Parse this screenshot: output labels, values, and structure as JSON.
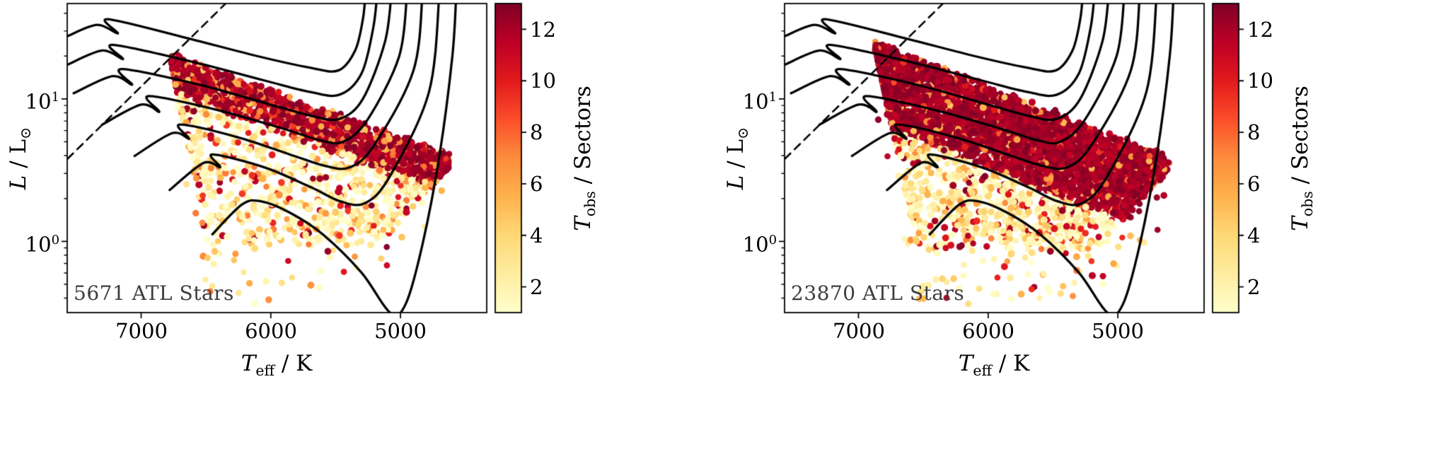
{
  "background": "#ffffff",
  "chart_data": {
    "type": "scatter",
    "title": "",
    "colormap": "YlOrRd",
    "colormap_stops": [
      "#ffffcc",
      "#ffeda0",
      "#fed976",
      "#feb24c",
      "#fd8d3c",
      "#fc4e2a",
      "#e31a1c",
      "#bd0026",
      "#800026"
    ],
    "shared": {
      "x_range": [
        7570,
        4335
      ],
      "y_log_range": [
        -0.5,
        1.67
      ],
      "x_tick_values": [
        7000,
        6000,
        5000
      ],
      "y_tick_logs": [
        0,
        1
      ],
      "y_scale": "log",
      "x_axis_reversed": true,
      "colorbar": {
        "vmin": 1,
        "vmax": 13,
        "tick_values": [
          2,
          4,
          6,
          8,
          10,
          12
        ]
      },
      "dashed_line": [
        [
          7567,
          0.58
        ],
        [
          6270,
          1.74
        ]
      ],
      "tracks": [
        [
          [
            7570,
            1.44
          ],
          [
            7340,
            1.52
          ],
          [
            7180,
            1.46
          ],
          [
            7260,
            1.56
          ],
          [
            6700,
            1.44
          ],
          [
            6100,
            1.3
          ],
          [
            5700,
            1.22
          ],
          [
            5480,
            1.2
          ],
          [
            5350,
            1.34
          ],
          [
            5290,
            1.56
          ],
          [
            5270,
            1.74
          ]
        ],
        [
          [
            7570,
            1.24
          ],
          [
            7300,
            1.34
          ],
          [
            7140,
            1.28
          ],
          [
            7220,
            1.38
          ],
          [
            6600,
            1.26
          ],
          [
            6050,
            1.13
          ],
          [
            5700,
            1.05
          ],
          [
            5470,
            1.03
          ],
          [
            5300,
            1.18
          ],
          [
            5210,
            1.5
          ],
          [
            5180,
            1.74
          ]
        ],
        [
          [
            7520,
            1.04
          ],
          [
            7220,
            1.16
          ],
          [
            7070,
            1.1
          ],
          [
            7150,
            1.21
          ],
          [
            6550,
            1.1
          ],
          [
            6000,
            0.96
          ],
          [
            5680,
            0.88
          ],
          [
            5470,
            0.86
          ],
          [
            5290,
            1.0
          ],
          [
            5120,
            1.4
          ],
          [
            5070,
            1.74
          ]
        ],
        [
          [
            7300,
            0.82
          ],
          [
            7000,
            0.96
          ],
          [
            6860,
            0.91
          ],
          [
            6940,
            1.02
          ],
          [
            6400,
            0.92
          ],
          [
            5900,
            0.79
          ],
          [
            5620,
            0.71
          ],
          [
            5440,
            0.7
          ],
          [
            5250,
            0.86
          ],
          [
            5010,
            1.3
          ],
          [
            4950,
            1.74
          ]
        ],
        [
          [
            7050,
            0.6
          ],
          [
            6760,
            0.76
          ],
          [
            6630,
            0.72
          ],
          [
            6700,
            0.82
          ],
          [
            6250,
            0.73
          ],
          [
            5820,
            0.6
          ],
          [
            5580,
            0.53
          ],
          [
            5390,
            0.52
          ],
          [
            5200,
            0.68
          ],
          [
            4900,
            1.2
          ],
          [
            4830,
            1.74
          ]
        ],
        [
          [
            6780,
            0.36
          ],
          [
            6520,
            0.55
          ],
          [
            6390,
            0.52
          ],
          [
            6450,
            0.61
          ],
          [
            6050,
            0.52
          ],
          [
            5690,
            0.38
          ],
          [
            5460,
            0.28
          ],
          [
            5270,
            0.27
          ],
          [
            5080,
            0.46
          ],
          [
            4780,
            1.05
          ],
          [
            4700,
            1.74
          ]
        ],
        [
          [
            6450,
            0.05
          ],
          [
            6220,
            0.26
          ],
          [
            6070,
            0.28
          ],
          [
            5850,
            0.2
          ],
          [
            5600,
            0.05
          ],
          [
            5300,
            -0.22
          ],
          [
            5080,
            -0.5
          ],
          [
            4960,
            -0.44
          ],
          [
            4830,
            -0.02
          ],
          [
            4700,
            0.6
          ],
          [
            4600,
            1.3
          ],
          [
            4570,
            1.74
          ]
        ]
      ]
    },
    "panels": [
      {
        "annotation": "5671 ATL Stars",
        "n_stars": 5671,
        "x_ticks": [
          "7000",
          "6000",
          "5000"
        ],
        "y_ticks": [
          {
            "base": "10",
            "exp": "0"
          },
          {
            "base": "10",
            "exp": "1"
          }
        ],
        "xlabel": {
          "symbol": "T",
          "sub": "eff",
          "rest": " / K"
        },
        "ylabel": {
          "symbol": "L",
          "rest": " / L",
          "sub": "⊙"
        },
        "colorbar_label": {
          "symbol": "T",
          "sub": "obs",
          "rest": " / Sectors"
        },
        "colorbar_ticks": [
          "2",
          "4",
          "6",
          "8",
          "10",
          "12"
        ],
        "cloud": {
          "seed": 1337,
          "n_render": 2100,
          "hot_edge_T0": 6500,
          "hot_edge_slope": 215,
          "top_edge": [
            [
              6760,
              1.3
            ],
            [
              4640,
              0.6
            ]
          ],
          "cool_limit": 4620,
          "hot_limit": 7000,
          "bottom_rise_T": 5150,
          "bottom_rise_rate": 0.0011,
          "band_depth": 0.24,
          "band_prob": 0.45,
          "band_dark_frac": 0.72,
          "scatter_dark_prob": 0.09,
          "outliers": [
            [
              5560,
              -0.07,
              12.5
            ]
          ]
        }
      },
      {
        "annotation": "23870 ATL Stars",
        "n_stars": 23870,
        "x_ticks": [
          "7000",
          "6000",
          "5000"
        ],
        "y_ticks": [
          {
            "base": "10",
            "exp": "0"
          },
          {
            "base": "10",
            "exp": "1"
          }
        ],
        "xlabel": {
          "symbol": "T",
          "sub": "eff",
          "rest": " / K"
        },
        "ylabel": {
          "symbol": "L",
          "rest": " / L",
          "sub": "⊙"
        },
        "colorbar_label": {
          "symbol": "T",
          "sub": "obs",
          "rest": " / Sectors"
        },
        "colorbar_ticks": [
          "2",
          "4",
          "6",
          "8",
          "10",
          "12"
        ],
        "cloud": {
          "seed": 777,
          "n_render": 4300,
          "hot_edge_T0": 6560,
          "hot_edge_slope": 230,
          "top_edge": [
            [
              6870,
              1.39
            ],
            [
              4600,
              0.58
            ]
          ],
          "cool_limit": 4600,
          "hot_limit": 7050,
          "bottom_rise_T": 5150,
          "bottom_rise_rate": 0.0011,
          "band_depth": 0.55,
          "band_prob": 0.55,
          "band_dark_frac": 0.88,
          "scatter_dark_prob": 0.14,
          "outliers": [
            [
              5520,
              -0.07,
              12.5
            ]
          ]
        }
      }
    ]
  }
}
